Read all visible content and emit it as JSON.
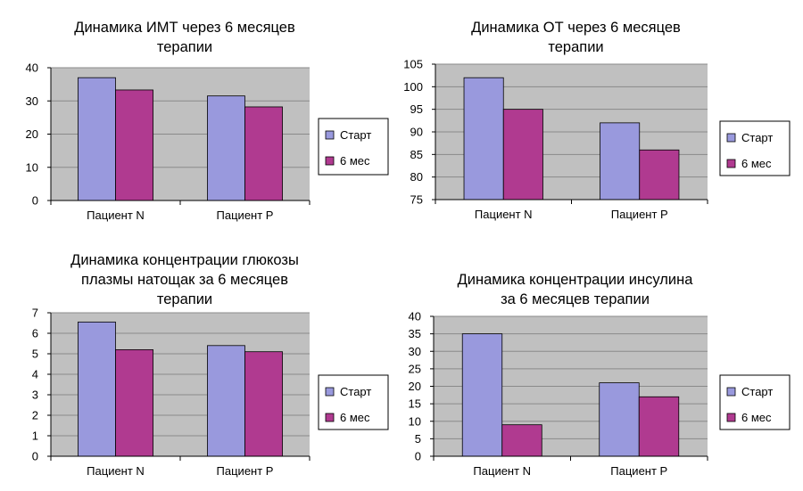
{
  "colors": {
    "series1": "#9999dd",
    "series2": "#b03a90",
    "plot_bg": "#c0c0c0",
    "grid": "#8a8a8a"
  },
  "chart_data": [
    {
      "type": "bar",
      "title_lines": [
        "Динамика ИМТ через 6 месяцев",
        "терапии"
      ],
      "categories": [
        "Пациент N",
        "Пациент P"
      ],
      "series": [
        {
          "name": "Старт",
          "values": [
            37,
            31.5
          ]
        },
        {
          "name": "6 мес",
          "values": [
            33.3,
            28.2
          ]
        }
      ],
      "ylim": [
        0,
        40
      ],
      "yticks": [
        "0",
        "10",
        "20",
        "30",
        "40"
      ],
      "grid": true,
      "legend": "right"
    },
    {
      "type": "bar",
      "title_lines": [
        "Динамика ОТ через 6 месяцев",
        "терапии"
      ],
      "categories": [
        "Пациент N",
        "Пациент P"
      ],
      "series": [
        {
          "name": "Старт",
          "values": [
            102,
            92
          ]
        },
        {
          "name": "6 мес",
          "values": [
            95,
            86
          ]
        }
      ],
      "ylim": [
        75,
        105
      ],
      "yticks": [
        "75",
        "80",
        "85",
        "90",
        "95",
        "100",
        "105"
      ],
      "grid": true,
      "legend": "right"
    },
    {
      "type": "bar",
      "title_lines": [
        "Динамика концентрации глюкозы",
        "плазмы натощак за 6 месяцев",
        "терапии"
      ],
      "categories": [
        "Пациент N",
        "Пациент P"
      ],
      "series": [
        {
          "name": "Старт",
          "values": [
            6.55,
            5.4
          ]
        },
        {
          "name": "6 мес",
          "values": [
            5.2,
            5.1
          ]
        }
      ],
      "ylim": [
        0,
        7
      ],
      "yticks": [
        "0",
        "1",
        "2",
        "3",
        "4",
        "5",
        "6",
        "7"
      ],
      "grid": true,
      "legend": "right"
    },
    {
      "type": "bar",
      "title_lines": [
        "Динамика концентрации инсулина",
        "за 6 месяцев терапии"
      ],
      "categories": [
        "Пациент N",
        "Пациент P"
      ],
      "series": [
        {
          "name": "Старт",
          "values": [
            35,
            21
          ]
        },
        {
          "name": "6 мес",
          "values": [
            9,
            17
          ]
        }
      ],
      "ylim": [
        0,
        40
      ],
      "yticks": [
        "0",
        "5",
        "10",
        "15",
        "20",
        "25",
        "30",
        "35",
        "40"
      ],
      "grid": true,
      "legend": "right"
    }
  ]
}
